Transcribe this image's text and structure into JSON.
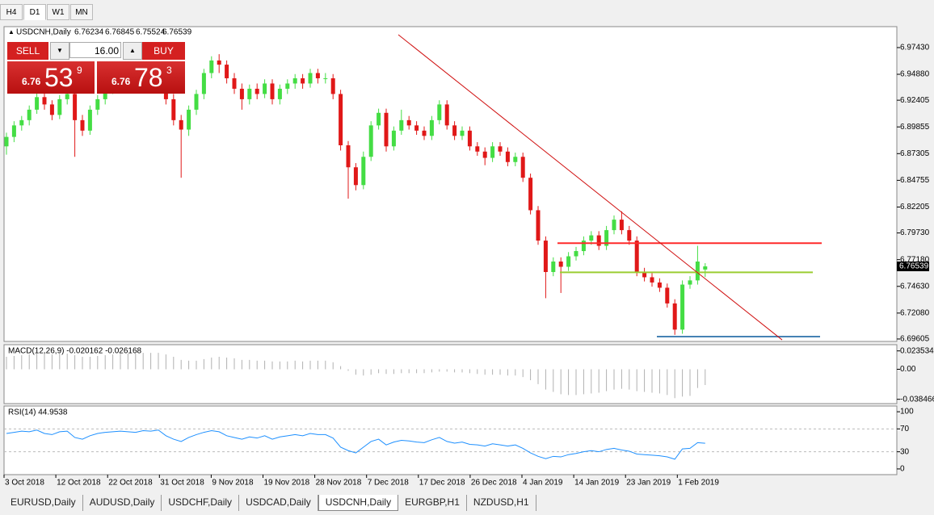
{
  "timeframes": [
    "H4",
    "D1",
    "W1",
    "MN"
  ],
  "active_timeframe": 1,
  "chart": {
    "symbol": "USDCNH,Daily",
    "candles": [
      [
        6.88,
        6.893,
        6.872,
        6.889
      ],
      [
        6.889,
        6.904,
        6.884,
        6.9
      ],
      [
        6.9,
        6.909,
        6.895,
        6.905
      ],
      [
        6.905,
        6.919,
        6.9,
        6.915
      ],
      [
        6.915,
        6.932,
        6.911,
        6.927
      ],
      [
        6.927,
        6.931,
        6.915,
        6.92
      ],
      [
        6.92,
        6.924,
        6.905,
        6.91
      ],
      [
        6.91,
        6.929,
        6.906,
        6.925
      ],
      [
        6.925,
        6.935,
        6.92,
        6.93
      ],
      [
        6.93,
        6.934,
        6.87,
        6.905
      ],
      [
        6.905,
        6.91,
        6.89,
        6.895
      ],
      [
        6.895,
        6.919,
        6.891,
        6.915
      ],
      [
        6.915,
        6.929,
        6.91,
        6.925
      ],
      [
        6.925,
        6.939,
        6.92,
        6.935
      ],
      [
        6.935,
        6.944,
        6.93,
        6.94
      ],
      [
        6.94,
        6.949,
        6.935,
        6.945
      ],
      [
        6.945,
        6.949,
        6.938,
        6.943
      ],
      [
        6.943,
        6.947,
        6.935,
        6.94
      ],
      [
        6.94,
        6.952,
        6.936,
        6.948
      ],
      [
        6.948,
        6.952,
        6.94,
        6.945
      ],
      [
        6.945,
        6.954,
        6.94,
        6.95
      ],
      [
        6.95,
        6.954,
        6.92,
        6.925
      ],
      [
        6.925,
        6.93,
        6.9,
        6.905
      ],
      [
        6.905,
        6.91,
        6.85,
        6.896
      ],
      [
        6.896,
        6.919,
        6.89,
        6.915
      ],
      [
        6.915,
        6.934,
        6.91,
        6.93
      ],
      [
        6.93,
        6.954,
        6.925,
        6.95
      ],
      [
        6.95,
        6.966,
        6.945,
        6.962
      ],
      [
        6.962,
        6.968,
        6.95,
        6.958
      ],
      [
        6.958,
        6.962,
        6.94,
        6.945
      ],
      [
        6.945,
        6.95,
        6.93,
        6.935
      ],
      [
        6.935,
        6.94,
        6.915,
        6.925
      ],
      [
        6.925,
        6.939,
        6.92,
        6.935
      ],
      [
        6.935,
        6.94,
        6.925,
        6.93
      ],
      [
        6.93,
        6.944,
        6.926,
        6.94
      ],
      [
        6.94,
        6.944,
        6.92,
        6.925
      ],
      [
        6.925,
        6.939,
        6.92,
        6.935
      ],
      [
        6.935,
        6.944,
        6.93,
        6.94
      ],
      [
        6.94,
        6.949,
        6.935,
        6.945
      ],
      [
        6.945,
        6.949,
        6.935,
        6.94
      ],
      [
        6.94,
        6.954,
        6.936,
        6.95
      ],
      [
        6.95,
        6.954,
        6.94,
        6.945
      ],
      [
        6.945,
        6.95,
        6.94,
        6.945
      ],
      [
        6.945,
        6.949,
        6.925,
        6.93
      ],
      [
        6.93,
        6.934,
        6.876,
        6.881
      ],
      [
        6.881,
        6.885,
        6.83,
        6.86
      ],
      [
        6.86,
        6.864,
        6.838,
        6.843
      ],
      [
        6.843,
        6.875,
        6.839,
        6.87
      ],
      [
        6.87,
        6.904,
        6.866,
        6.9
      ],
      [
        6.9,
        6.916,
        6.896,
        6.912
      ],
      [
        6.912,
        6.916,
        6.875,
        6.88
      ],
      [
        6.88,
        6.899,
        6.876,
        6.895
      ],
      [
        6.895,
        6.915,
        6.891,
        6.905
      ],
      [
        6.905,
        6.909,
        6.896,
        6.9
      ],
      [
        6.9,
        6.904,
        6.891,
        6.895
      ],
      [
        6.895,
        6.899,
        6.886,
        6.89
      ],
      [
        6.89,
        6.909,
        6.886,
        6.905
      ],
      [
        6.905,
        6.924,
        6.901,
        6.92
      ],
      [
        6.92,
        6.924,
        6.896,
        6.9
      ],
      [
        6.9,
        6.904,
        6.886,
        6.89
      ],
      [
        6.89,
        6.899,
        6.886,
        6.895
      ],
      [
        6.895,
        6.899,
        6.876,
        6.88
      ],
      [
        6.88,
        6.884,
        6.871,
        6.875
      ],
      [
        6.875,
        6.879,
        6.862,
        6.869
      ],
      [
        6.869,
        6.884,
        6.865,
        6.88
      ],
      [
        6.88,
        6.884,
        6.871,
        6.875
      ],
      [
        6.875,
        6.879,
        6.861,
        6.865
      ],
      [
        6.865,
        6.874,
        6.861,
        6.87
      ],
      [
        6.87,
        6.874,
        6.846,
        6.85
      ],
      [
        6.85,
        6.854,
        6.815,
        6.819
      ],
      [
        6.819,
        6.823,
        6.786,
        6.79
      ],
      [
        6.79,
        6.794,
        6.735,
        6.76
      ],
      [
        6.76,
        6.774,
        6.756,
        6.77
      ],
      [
        6.77,
        6.774,
        6.74,
        6.765
      ],
      [
        6.765,
        6.779,
        6.761,
        6.775
      ],
      [
        6.775,
        6.784,
        6.771,
        6.78
      ],
      [
        6.78,
        6.794,
        6.776,
        6.79
      ],
      [
        6.79,
        6.799,
        6.786,
        6.795
      ],
      [
        6.795,
        6.799,
        6.781,
        6.785
      ],
      [
        6.785,
        6.804,
        6.781,
        6.8
      ],
      [
        6.8,
        6.814,
        6.796,
        6.81
      ],
      [
        6.81,
        6.818,
        6.796,
        6.8
      ],
      [
        6.8,
        6.804,
        6.786,
        6.79
      ],
      [
        6.79,
        6.794,
        6.756,
        6.76
      ],
      [
        6.76,
        6.764,
        6.751,
        6.755
      ],
      [
        6.755,
        6.759,
        6.746,
        6.75
      ],
      [
        6.75,
        6.754,
        6.741,
        6.745
      ],
      [
        6.745,
        6.749,
        6.726,
        6.73
      ],
      [
        6.73,
        6.734,
        6.7,
        6.705
      ],
      [
        6.705,
        6.752,
        6.701,
        6.748
      ],
      [
        6.748,
        6.756,
        6.744,
        6.752
      ],
      [
        6.752,
        6.785,
        6.748,
        6.77
      ],
      [
        6.76234,
        6.76845,
        6.75524,
        6.76539
      ]
    ],
    "ylim": [
      6.6937,
      6.9943
    ],
    "yticks": [
      {
        "value": 6.9743,
        "label": "6.97430"
      },
      {
        "value": 6.9488,
        "label": "6.94880"
      },
      {
        "value": 6.92405,
        "label": "6.92405"
      },
      {
        "value": 6.89855,
        "label": "6.89855"
      },
      {
        "value": 6.87305,
        "label": "6.87305"
      },
      {
        "value": 6.84755,
        "label": "6.84755"
      },
      {
        "value": 6.82205,
        "label": "6.82205"
      },
      {
        "value": 6.7973,
        "label": "6.79730"
      },
      {
        "value": 6.7718,
        "label": "6.77180"
      },
      {
        "value": 6.7463,
        "label": "6.74630"
      },
      {
        "value": 6.7208,
        "label": "6.72080"
      },
      {
        "value": 6.69605,
        "label": "6.69605"
      }
    ],
    "levels": [
      {
        "value": 6.7875,
        "color": "#ff2a2a"
      },
      {
        "value": 6.7597,
        "color": "#9acd32"
      },
      {
        "value": 6.6983,
        "color": "#4682b4"
      }
    ],
    "trendline": {
      "values": [
        6.9866,
        6.6952
      ],
      "color": "#d01010"
    },
    "dates": [
      "3 Oct 2018",
      "12 Oct 2018",
      "22 Oct 2018",
      "31 Oct 2018",
      "9 Nov 2018",
      "19 Nov 2018",
      "28 Nov 2018",
      "7 Dec 2018",
      "17 Dec 2018",
      "26 Dec 2018",
      "4 Jan 2019",
      "14 Jan 2019",
      "23 Jan 2019",
      "1 Feb 2019"
    ],
    "up_color": "#44dd44",
    "down_color": "#e01818"
  },
  "trade": {
    "sell": "SELL",
    "buy": "BUY",
    "volume": "16.00",
    "bid": [
      "6.76",
      "53",
      "9"
    ],
    "ask": [
      "6.76",
      "78",
      "3"
    ]
  },
  "macd": {
    "label": "MACD(12,26,9) -0.020162 -0.026168",
    "hist": [
      0.016,
      0.017,
      0.018,
      0.019,
      0.02,
      0.02,
      0.019,
      0.02,
      0.02,
      0.018,
      0.016,
      0.016,
      0.017,
      0.018,
      0.019,
      0.02,
      0.02,
      0.02,
      0.021,
      0.021,
      0.021,
      0.019,
      0.016,
      0.012,
      0.011,
      0.011,
      0.013,
      0.015,
      0.016,
      0.015,
      0.014,
      0.012,
      0.012,
      0.011,
      0.011,
      0.01,
      0.01,
      0.01,
      0.011,
      0.01,
      0.011,
      0.011,
      0.011,
      0.009,
      0.004,
      -0.002,
      -0.007,
      -0.008,
      -0.007,
      -0.005,
      -0.006,
      -0.006,
      -0.005,
      -0.005,
      -0.005,
      -0.005,
      -0.004,
      -0.003,
      -0.003,
      -0.004,
      -0.004,
      -0.005,
      -0.006,
      -0.007,
      -0.007,
      -0.007,
      -0.008,
      -0.008,
      -0.01,
      -0.014,
      -0.019,
      -0.026,
      -0.029,
      -0.032,
      -0.033,
      -0.033,
      -0.032,
      -0.031,
      -0.03,
      -0.028,
      -0.026,
      -0.025,
      -0.026,
      -0.028,
      -0.029,
      -0.03,
      -0.031,
      -0.033,
      -0.037,
      -0.035,
      -0.034,
      -0.024,
      -0.020162
    ],
    "ylim": [
      -0.044,
      0.0315
    ],
    "yticks": [
      0.023534,
      {
        "value": 0,
        "label": "0.00"
      },
      -0.038466
    ]
  },
  "rsi": {
    "label": "RSI(14) 44.9538",
    "values": [
      62,
      64,
      66,
      65,
      68,
      62,
      60,
      65,
      66,
      55,
      52,
      58,
      62,
      64,
      65,
      66,
      65,
      64,
      67,
      66,
      68,
      58,
      52,
      48,
      55,
      60,
      64,
      67,
      65,
      58,
      55,
      52,
      56,
      54,
      58,
      52,
      56,
      58,
      60,
      58,
      62,
      60,
      60,
      54,
      38,
      32,
      28,
      38,
      48,
      52,
      42,
      47,
      50,
      49,
      47,
      46,
      51,
      55,
      48,
      45,
      47,
      43,
      42,
      40,
      44,
      42,
      40,
      42,
      36,
      28,
      22,
      18,
      22,
      21,
      25,
      27,
      30,
      32,
      30,
      34,
      36,
      33,
      31,
      26,
      25,
      24,
      23,
      21,
      17,
      35,
      36,
      46,
      44.9538
    ],
    "ylim": [
      -10,
      110
    ],
    "yticks": [
      100,
      70,
      30,
      0
    ],
    "levels": [
      70,
      30
    ]
  },
  "tabs": [
    "EURUSD,Daily",
    "AUDUSD,Daily",
    "USDCHF,Daily",
    "USDCAD,Daily",
    "USDCNH,Daily",
    "EURGBP,H1",
    "NZDUSD,H1"
  ],
  "active_tab": 4
}
